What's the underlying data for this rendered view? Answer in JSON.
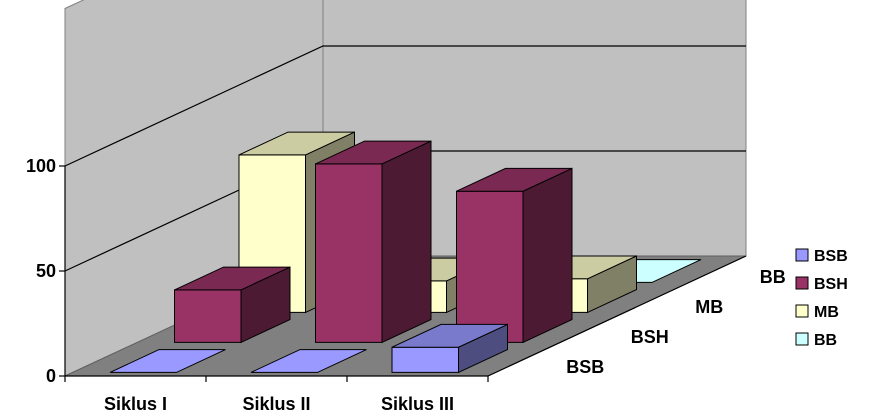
{
  "chart_data": {
    "type": "bar",
    "subtype": "3d-column",
    "title": "",
    "categories": [
      "Siklus I",
      "Siklus II",
      "Siklus III"
    ],
    "series": [
      {
        "name": "BSB",
        "color": "#9999FF",
        "values": [
          0,
          0,
          12
        ]
      },
      {
        "name": "BSH",
        "color": "#993366",
        "values": [
          25,
          85,
          72
        ]
      },
      {
        "name": "MB",
        "color": "#FFFFCC",
        "values": [
          75,
          15,
          16
        ]
      },
      {
        "name": "BB",
        "color": "#CCFFFF",
        "values": [
          0,
          0,
          0
        ]
      }
    ],
    "ylim": [
      0,
      100
    ],
    "yticks": [
      "0",
      "50",
      "100"
    ],
    "grid": true,
    "legend": "right"
  }
}
